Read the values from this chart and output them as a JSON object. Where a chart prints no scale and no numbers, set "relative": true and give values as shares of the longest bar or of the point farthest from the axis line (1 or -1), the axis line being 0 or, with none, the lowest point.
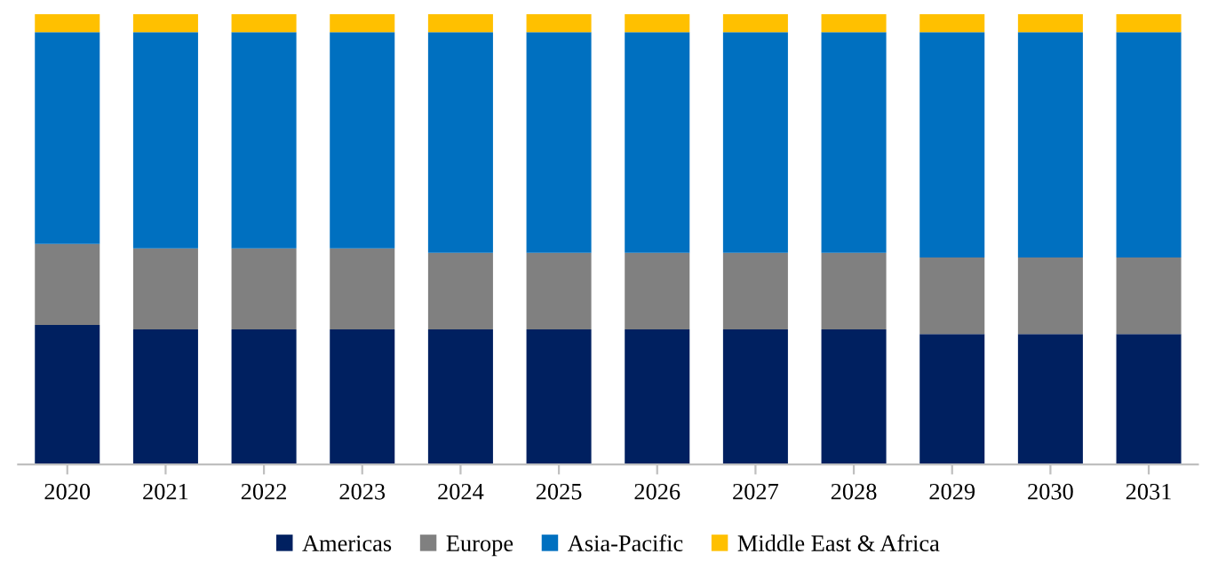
{
  "chart_data": {
    "type": "bar",
    "stacked": true,
    "relative": true,
    "legend": "bottom",
    "grid": false,
    "tick_labels": "x",
    "categories": [
      "2020",
      "2021",
      "2022",
      "2023",
      "2024",
      "2025",
      "2026",
      "2027",
      "2028",
      "2029",
      "2030",
      "2031"
    ],
    "series": [
      {
        "name": "Americas",
        "color": "#002060",
        "values": [
          0.31,
          0.3,
          0.3,
          0.3,
          0.3,
          0.3,
          0.3,
          0.3,
          0.3,
          0.29,
          0.29,
          0.29
        ]
      },
      {
        "name": "Europe",
        "color": "#808080",
        "values": [
          0.18,
          0.18,
          0.18,
          0.18,
          0.17,
          0.17,
          0.17,
          0.17,
          0.17,
          0.17,
          0.17,
          0.17
        ]
      },
      {
        "name": "Asia-Pacific",
        "color": "#0070c0",
        "values": [
          0.47,
          0.48,
          0.48,
          0.48,
          0.49,
          0.49,
          0.49,
          0.49,
          0.49,
          0.5,
          0.5,
          0.5
        ]
      },
      {
        "name": "Middle East & Africa",
        "color": "#ffc000",
        "values": [
          0.04,
          0.04,
          0.04,
          0.04,
          0.04,
          0.04,
          0.04,
          0.04,
          0.04,
          0.04,
          0.04,
          0.04
        ]
      }
    ]
  }
}
